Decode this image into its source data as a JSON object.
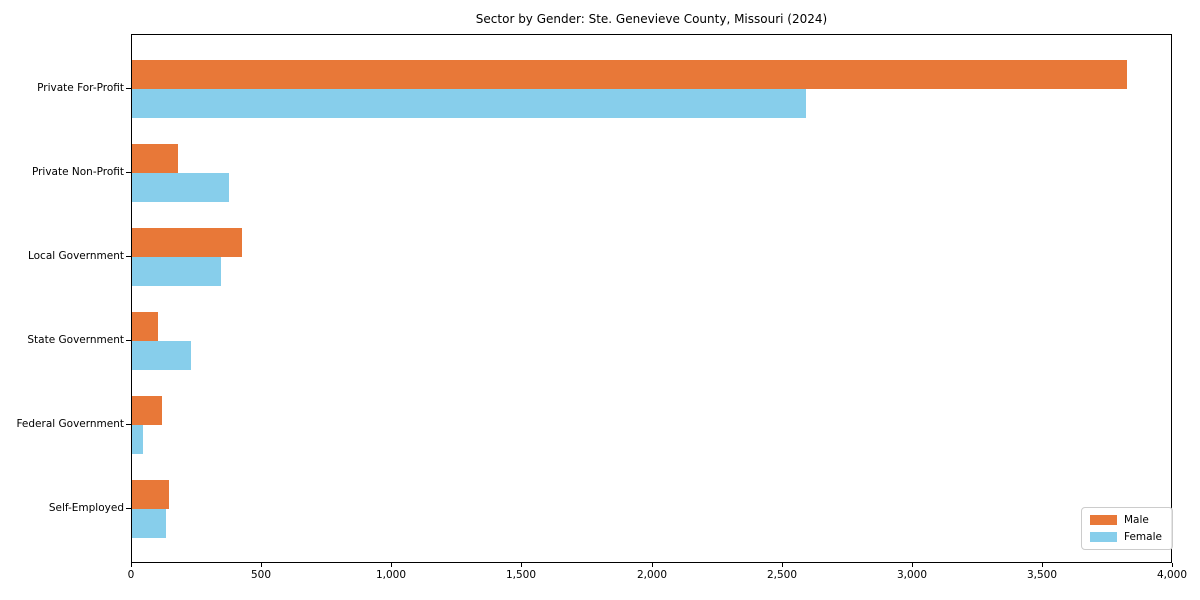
{
  "title": "Sector by Gender: Ste. Genevieve County, Missouri (2024)",
  "chart_data": {
    "type": "bar",
    "orientation": "horizontal",
    "title": "Sector by Gender: Ste. Genevieve County, Missouri (2024)",
    "categories": [
      "Private For-Profit",
      "Private Non-Profit",
      "Local Government",
      "State Government",
      "Federal Government",
      "Self-Employed"
    ],
    "series": [
      {
        "name": "Male",
        "color": "#e87838",
        "values": [
          3823,
          176,
          421,
          99,
          114,
          141
        ]
      },
      {
        "name": "Female",
        "color": "#87ceeb",
        "values": [
          2590,
          374,
          342,
          227,
          41,
          131
        ]
      }
    ],
    "xlabel": "",
    "ylabel": "",
    "xlim": [
      0,
      4000
    ],
    "x_tick_values": [
      0,
      500,
      1000,
      1500,
      2000,
      2500,
      3000,
      3500,
      4000
    ],
    "x_tick_labels": [
      "0",
      "500",
      "1,000",
      "1,500",
      "2,000",
      "2,500",
      "3,000",
      "3,500",
      "4,000"
    ],
    "grid": false,
    "legend_position": "lower right"
  }
}
